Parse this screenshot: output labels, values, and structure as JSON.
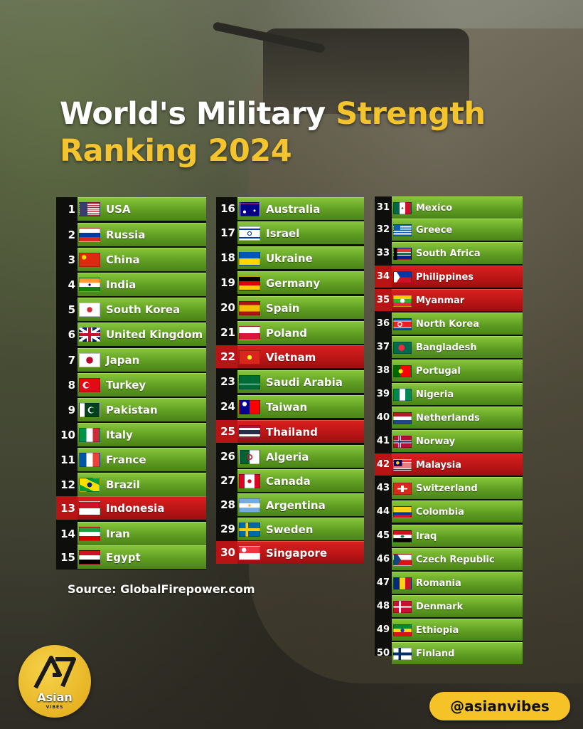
{
  "title": {
    "part1": "World's Military ",
    "part2": "Strength",
    "part3": "Ranking 2024"
  },
  "columns": [
    [
      {
        "rank": "1",
        "country": "USA",
        "highlight": false
      },
      {
        "rank": "2",
        "country": "Russia",
        "highlight": false
      },
      {
        "rank": "3",
        "country": "China",
        "highlight": false
      },
      {
        "rank": "4",
        "country": "India",
        "highlight": false
      },
      {
        "rank": "5",
        "country": "South Korea",
        "highlight": false
      },
      {
        "rank": "6",
        "country": "United Kingdom",
        "highlight": false
      },
      {
        "rank": "7",
        "country": "Japan",
        "highlight": false
      },
      {
        "rank": "8",
        "country": "Turkey",
        "highlight": false
      },
      {
        "rank": "9",
        "country": "Pakistan",
        "highlight": false
      },
      {
        "rank": "10",
        "country": "Italy",
        "highlight": false
      },
      {
        "rank": "11",
        "country": "France",
        "highlight": false
      },
      {
        "rank": "12",
        "country": "Brazil",
        "highlight": false
      },
      {
        "rank": "13",
        "country": "Indonesia",
        "highlight": true
      },
      {
        "rank": "14",
        "country": "Iran",
        "highlight": false
      },
      {
        "rank": "15",
        "country": "Egypt",
        "highlight": false
      }
    ],
    [
      {
        "rank": "16",
        "country": "Australia",
        "highlight": false
      },
      {
        "rank": "17",
        "country": "Israel",
        "highlight": false
      },
      {
        "rank": "18",
        "country": "Ukraine",
        "highlight": false
      },
      {
        "rank": "19",
        "country": "Germany",
        "highlight": false
      },
      {
        "rank": "20",
        "country": "Spain",
        "highlight": false
      },
      {
        "rank": "21",
        "country": "Poland",
        "highlight": false
      },
      {
        "rank": "22",
        "country": "Vietnam",
        "highlight": true
      },
      {
        "rank": "23",
        "country": "Saudi Arabia",
        "highlight": false
      },
      {
        "rank": "24",
        "country": "Taiwan",
        "highlight": false
      },
      {
        "rank": "25",
        "country": "Thailand",
        "highlight": true
      },
      {
        "rank": "26",
        "country": "Algeria",
        "highlight": false
      },
      {
        "rank": "27",
        "country": "Canada",
        "highlight": false
      },
      {
        "rank": "28",
        "country": "Argentina",
        "highlight": false
      },
      {
        "rank": "29",
        "country": "Sweden",
        "highlight": false
      },
      {
        "rank": "30",
        "country": "Singapore",
        "highlight": true
      }
    ],
    [
      {
        "rank": "31",
        "country": "Mexico",
        "highlight": false
      },
      {
        "rank": "32",
        "country": "Greece",
        "highlight": false
      },
      {
        "rank": "33",
        "country": "South Africa",
        "highlight": false
      },
      {
        "rank": "34",
        "country": "Philippines",
        "highlight": true
      },
      {
        "rank": "35",
        "country": "Myanmar",
        "highlight": true
      },
      {
        "rank": "36",
        "country": "North Korea",
        "highlight": false
      },
      {
        "rank": "37",
        "country": "Bangladesh",
        "highlight": false
      },
      {
        "rank": "38",
        "country": "Portugal",
        "highlight": false
      },
      {
        "rank": "39",
        "country": "Nigeria",
        "highlight": false
      },
      {
        "rank": "40",
        "country": "Netherlands",
        "highlight": false
      },
      {
        "rank": "41",
        "country": "Norway",
        "highlight": false
      },
      {
        "rank": "42",
        "country": "Malaysia",
        "highlight": true
      },
      {
        "rank": "43",
        "country": "Switzerland",
        "highlight": false
      },
      {
        "rank": "44",
        "country": "Colombia",
        "highlight": false
      },
      {
        "rank": "45",
        "country": "Iraq",
        "highlight": false
      },
      {
        "rank": "46",
        "country": "Czech Republic",
        "highlight": false
      },
      {
        "rank": "47",
        "country": "Romania",
        "highlight": false
      },
      {
        "rank": "48",
        "country": "Denmark",
        "highlight": false
      },
      {
        "rank": "49",
        "country": "Ethiopia",
        "highlight": false
      },
      {
        "rank": "50",
        "country": "Finland",
        "highlight": false
      }
    ]
  ],
  "source": "Source: GlobalFirepower.com",
  "logo": {
    "text": "Asian",
    "sub": "VIBES"
  },
  "handle": "@asianvibes",
  "colors": {
    "accent": "#f3c42e",
    "row_green": "#5f9d22",
    "row_red": "#b81416",
    "handle_bg": "#f5c327"
  }
}
